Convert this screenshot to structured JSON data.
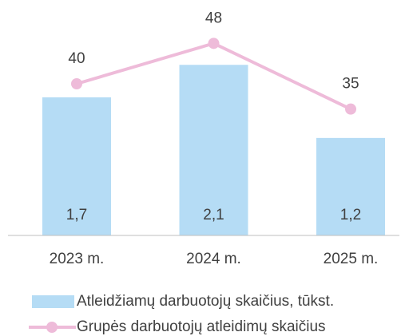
{
  "chart_data": {
    "type": "bar-line",
    "categories": [
      "2023 m.",
      "2024 m.",
      "2025 m."
    ],
    "series": [
      {
        "name": "Atleidžiamų darbuotojų skaičius, tūkst.",
        "type": "bar",
        "color": "#b5dcf5",
        "values": [
          1.7,
          2.1,
          1.2
        ],
        "value_labels": [
          "1,7",
          "2,1",
          "1,2"
        ]
      },
      {
        "name": "Grupės darbuotojų atleidimų skaičius",
        "type": "line",
        "axis": "y2",
        "color": "#eebbd9",
        "values": [
          40,
          48,
          35
        ]
      }
    ],
    "ylim": [
      0,
      2.8
    ],
    "y2lim": [
      10,
      55
    ],
    "legend": "bottom"
  }
}
